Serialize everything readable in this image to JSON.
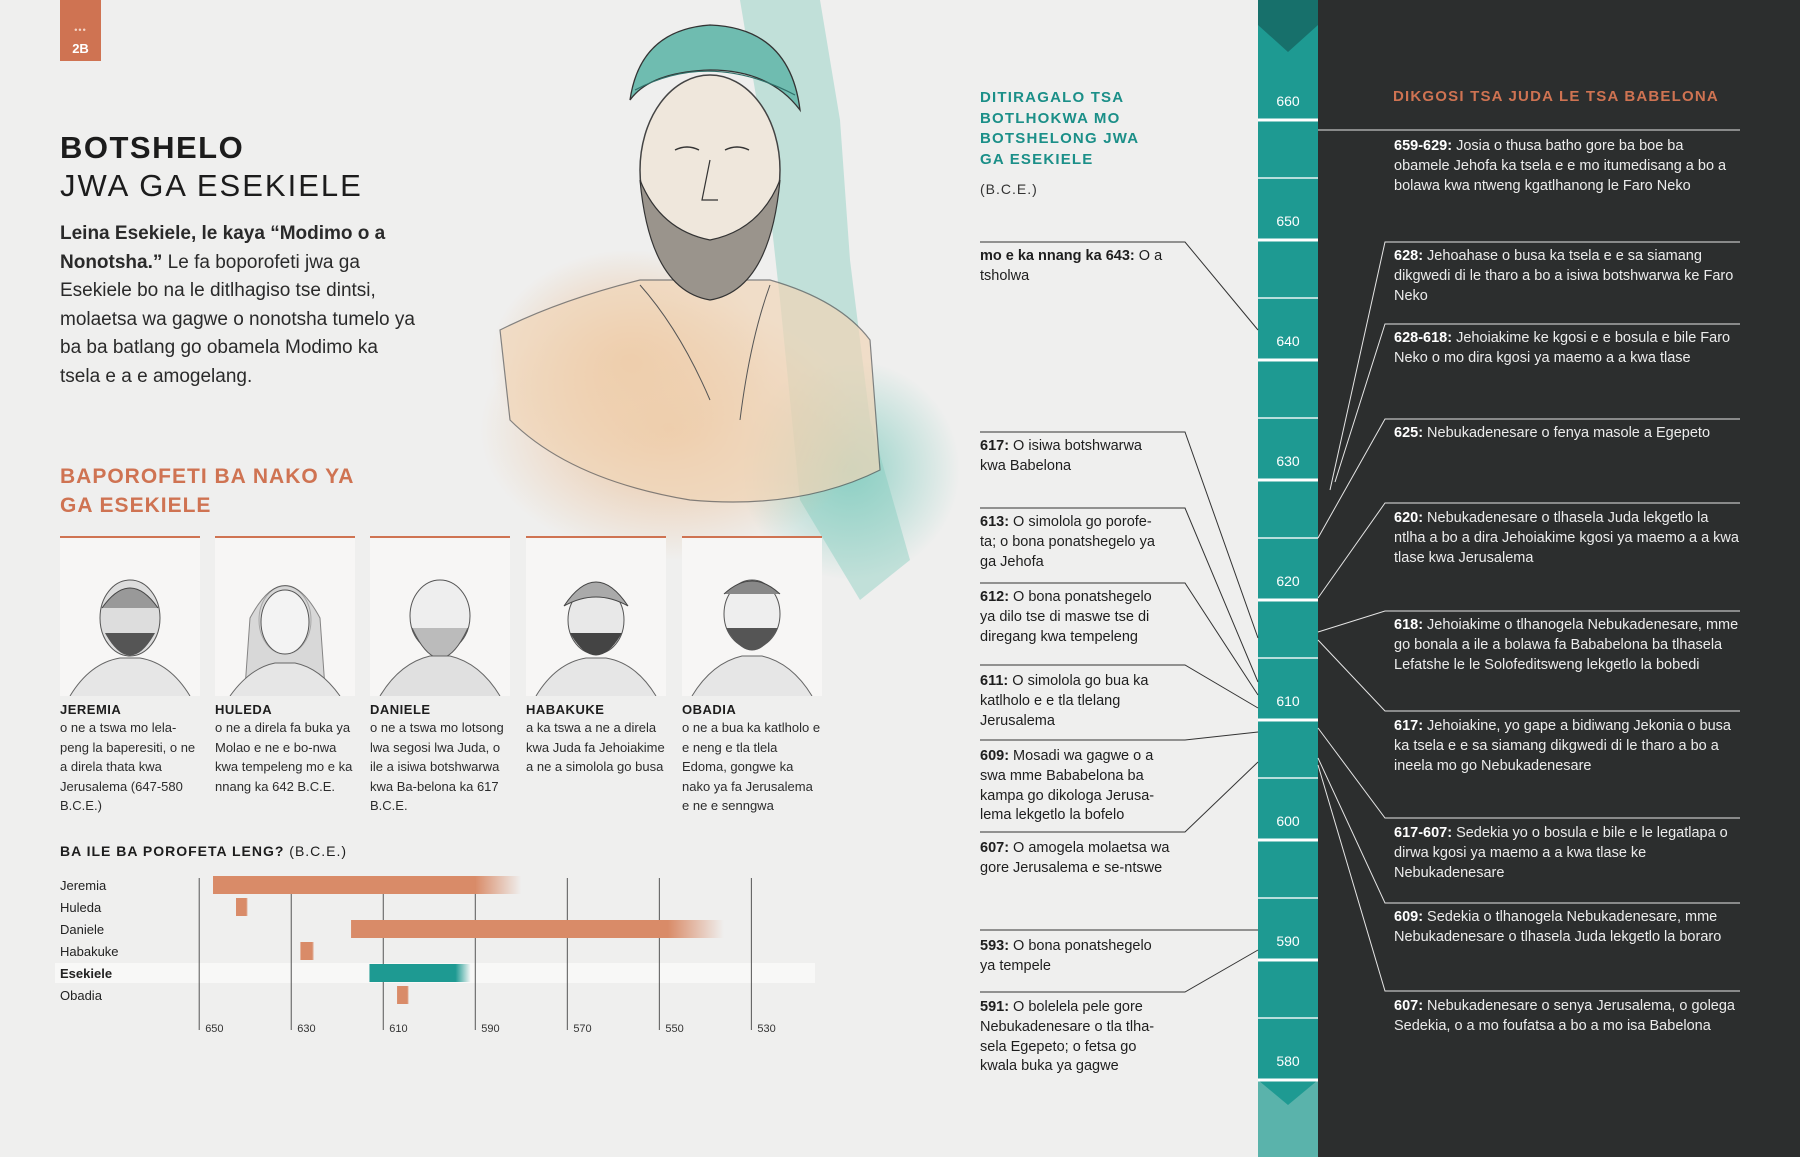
{
  "page_tab": {
    "dots": "•••",
    "label": "2B"
  },
  "header": {
    "title_main": "BOTSHELO",
    "title_sub": "JWA GA ESEKIELE"
  },
  "intro": {
    "bold": "Leina Esekiele, le kaya “Modimo o a Nonotsha.”",
    "text": " Le fa boporofeti jwa ga Esekiele bo na le ditlhagiso tse dintsi, molaetsa wa gagwe o nonotsha tumelo ya ba ba batlang go obamela Modimo ka tsela e a e amogelang."
  },
  "prophets_section": {
    "heading": "BAPOROFETI BA NAKO YA GA ESEKIELE",
    "cards": [
      {
        "name": "JEREMIA",
        "desc": "o ne a tswa mo lela-peng la baperesiti, o ne a direla thata kwa Jerusalema (647-580 B.C.E.)"
      },
      {
        "name": "HULEDA",
        "desc": "o ne a direla fa buka ya Molao e ne e bo-nwa kwa tempeleng mo e ka nnang ka 642 B.C.E."
      },
      {
        "name": "DANIELE",
        "desc": "o ne a tswa mo lotsong lwa segosi lwa Juda, o ile a isiwa botshwarwa kwa Ba-belona ka 617 B.C.E."
      },
      {
        "name": "HABAKUKE",
        "desc": "a ka tswa a ne a direla kwa Juda fa Jehoiakime a ne a simolola go busa"
      },
      {
        "name": "OBADIA",
        "desc": "o ne a bua ka katlholo e e neng e tla tlela Edoma, gongwe ka nako ya fa Jerusalema e ne e senngwa"
      }
    ]
  },
  "chart_data": {
    "type": "bar",
    "title": "BA ILE BA POROFETA LENG?",
    "unit": "(B.C.E.)",
    "x_ticks": [
      "650",
      "630",
      "610",
      "590",
      "570",
      "550",
      "530"
    ],
    "xlim": [
      652,
      514
    ],
    "series": [
      {
        "name": "Jeremia",
        "start": 647,
        "end": 580,
        "color": "#d98b68",
        "highlight": false
      },
      {
        "name": "Huleda",
        "start": 642,
        "end": 641,
        "color": "#d98b68",
        "highlight": false
      },
      {
        "name": "Daniele",
        "start": 617,
        "end": 536,
        "color": "#d98b68",
        "highlight": false
      },
      {
        "name": "Habakuke",
        "start": 628,
        "end": 625,
        "color": "#d98b68",
        "highlight": false
      },
      {
        "name": "Esekiele",
        "start": 613,
        "end": 591,
        "color": "#1e9a92",
        "highlight": true
      },
      {
        "name": "Obadia",
        "start": 607,
        "end": 605,
        "color": "#d98b68",
        "highlight": false
      }
    ]
  },
  "events_column": {
    "heading": "DITIRAGALO TSA BOTLHOKWA MO BOTSHELONG JWA GA ESEKIELE",
    "unit": "(B.C.E.)",
    "items": [
      {
        "year": "mo e ka nnang ka 643:",
        "text": " O a tsholwa"
      },
      {
        "year": "617:",
        "text": " O isiwa botshwarwa kwa Babelona"
      },
      {
        "year": "613:",
        "text": " O simolola go porofe-ta; o bona ponatshegelo ya ga Jehofa"
      },
      {
        "year": "612:",
        "text": " O bona ponatshegelo ya dilo tse di maswe tse di diregang kwa tempeleng"
      },
      {
        "year": "611:",
        "text": " O simolola go bua ka katlholo e e tla tlelang Jerusalema"
      },
      {
        "year": "609:",
        "text": " Mosadi wa gagwe o a swa mme Bababelona ba kampa go dikologa Jerusa-lema lekgetlo la bofelo"
      },
      {
        "year": "607:",
        "text": " O amogela molaetsa wa gore Jerusalema e se-ntswe"
      },
      {
        "year": "593:",
        "text": " O bona ponatshegelo ya tempele"
      },
      {
        "year": "591:",
        "text": " O bolelela pele gore Nebukadenesare o tla tlha-sela Egepeto; o fetsa go kwala buka ya gagwe"
      }
    ]
  },
  "year_bar": {
    "labels": [
      "660",
      "650",
      "640",
      "630",
      "620",
      "610",
      "600",
      "590",
      "580"
    ]
  },
  "kings_column": {
    "heading": "DIKGOSI TSA JUDA LE TSA BABELONA",
    "items": [
      {
        "year": "659-629:",
        "text": " Josia o thusa batho gore ba boe ba obamele Jehofa ka tsela e e mo itumedisang a bo a bolawa kwa ntweng kgatlhanong le Faro Neko"
      },
      {
        "year": "628:",
        "text": " Jehoahase o busa ka tsela e e sa siamang dikgwedi di le tharo a bo a isiwa botshwarwa ke Faro Neko"
      },
      {
        "year": "628-618:",
        "text": " Jehoiakime ke kgosi e e bosula e bile Faro Neko o mo dira kgosi ya maemo a a kwa tlase"
      },
      {
        "year": "625:",
        "text": " Nebukadenesare o fenya masole a Egepeto"
      },
      {
        "year": "620:",
        "text": " Nebukadenesare o tlhasela Juda lekgetlo la ntlha a bo a dira Jehoiakime kgosi ya maemo a a kwa tlase kwa Jerusalema"
      },
      {
        "year": "618:",
        "text": " Jehoiakime o tlhanogela Nebukadenesare, mme go bonala a ile a bolawa fa Bababelona ba tlhasela Lefatshe le le Solofeditsweng lekgetlo la bobedi"
      },
      {
        "year": "617:",
        "text": " Jehoiakine, yo gape a bidiwang Jekonia o busa ka tsela e e sa siamang dikgwedi di le tharo a bo a ineela mo go Nebukadenesare"
      },
      {
        "year": "617-607:",
        "text": " Sedekia yo o bosula e bile e le legatlapa o dirwa kgosi ya maemo a a kwa tlase ke Nebukadenesare"
      },
      {
        "year": "609:",
        "text": " Sedekia o tlhanogela Nebukadenesare, mme Nebukadenesare o tlhasela Juda lekgetlo la boraro"
      },
      {
        "year": "607:",
        "text": " Nebukadenesare o senya Jerusalema, o golega Sedekia, o a mo foufatsa a bo a mo isa Babelona"
      }
    ]
  },
  "colors": {
    "accent_orange": "#cf7352",
    "accent_teal": "#1e9a92",
    "dark_panel": "#2c2e2e"
  }
}
